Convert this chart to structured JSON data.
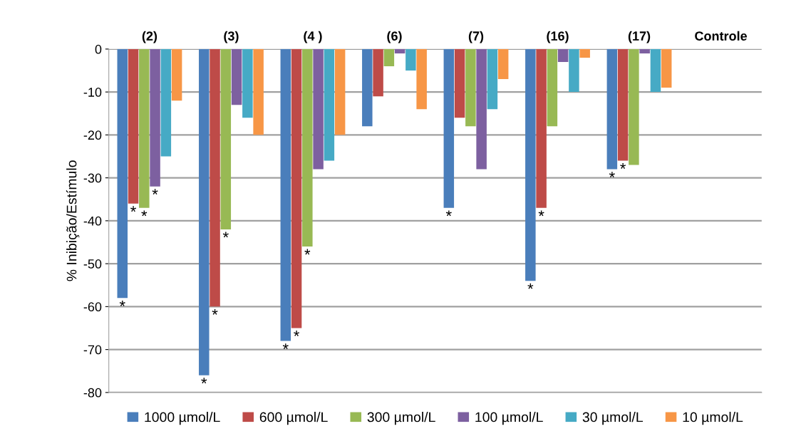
{
  "chart_data": {
    "type": "bar",
    "ylabel": "% Inibição/Estímulo",
    "categories": [
      "(2)",
      "(3)",
      "(4 )",
      "(6)",
      "(7)",
      "(16)",
      "(17)",
      "Controle"
    ],
    "series": [
      {
        "name": "1000 µmol/L",
        "color": "#4a7ebb",
        "values": [
          -58,
          -76,
          -68,
          -18,
          -37,
          -54,
          -28,
          0
        ],
        "value_labels": [
          "*",
          "*",
          "*",
          null,
          "*",
          "*",
          "*",
          null
        ]
      },
      {
        "name": "600 µmol/L",
        "color": "#be4b48",
        "values": [
          -36,
          -60,
          -65,
          -11,
          -16,
          -37,
          -26,
          0
        ],
        "value_labels": [
          "*",
          "*",
          "*",
          null,
          null,
          "*",
          "*",
          null
        ]
      },
      {
        "name": "300 µmol/L",
        "color": "#98b954",
        "values": [
          -37,
          -42,
          -46,
          -4,
          -18,
          -18,
          -27,
          0
        ],
        "value_labels": [
          "*",
          "*",
          "*",
          null,
          null,
          null,
          null,
          null
        ]
      },
      {
        "name": "100 µmol/L",
        "color": "#7d60a0",
        "values": [
          -32,
          -13,
          -28,
          -1,
          -28,
          -3,
          -1,
          0
        ],
        "value_labels": [
          "*",
          null,
          null,
          null,
          null,
          null,
          null,
          null
        ]
      },
      {
        "name": "30 µmol/L",
        "color": "#46aac5",
        "values": [
          -25,
          -16,
          -26,
          -5,
          -14,
          -10,
          -10,
          0
        ]
      },
      {
        "name": "10 µmol/L",
        "color": "#f79646",
        "values": [
          -12,
          -20,
          -20,
          -14,
          -7,
          -2,
          -9,
          0
        ]
      }
    ],
    "ylim": [
      -80,
      0
    ],
    "yticks": [
      0,
      -10,
      -20,
      -30,
      -40,
      -50,
      -60,
      -70,
      -80
    ],
    "grid": "y",
    "legend": "bottom"
  }
}
